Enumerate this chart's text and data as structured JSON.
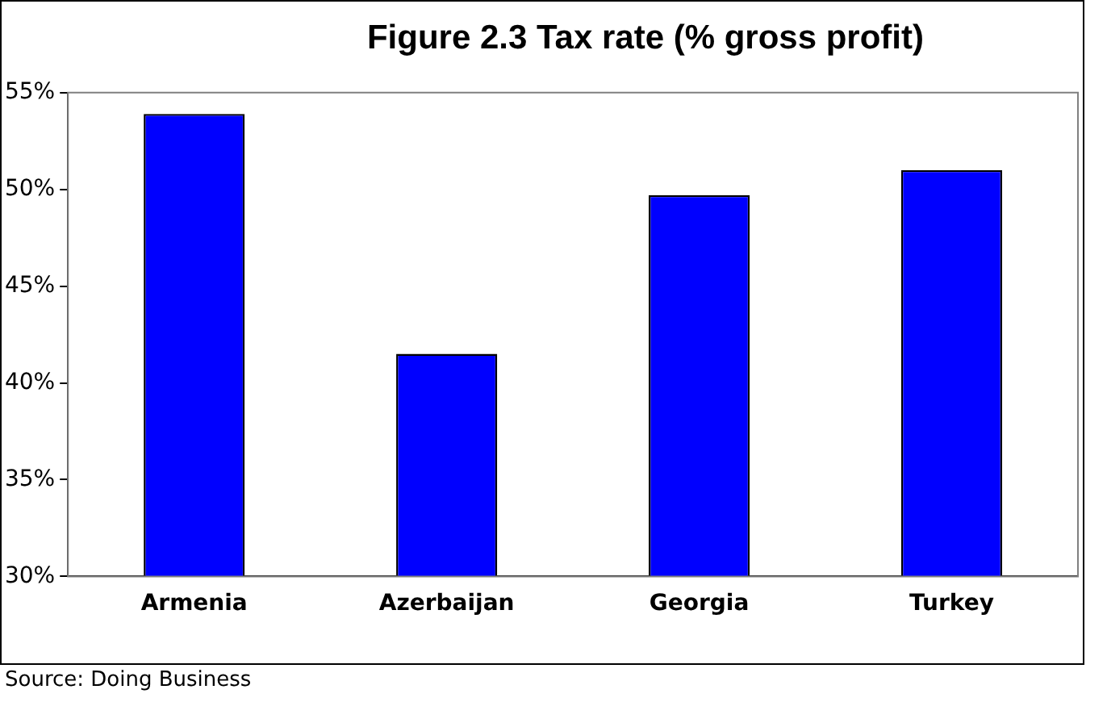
{
  "chart_data": {
    "type": "bar",
    "title": "Figure 2.3 Tax rate (% gross profit)",
    "categories": [
      "Armenia",
      "Azerbaijan",
      "Georgia",
      "Turkey"
    ],
    "values": [
      53.9,
      41.5,
      49.7,
      51.0
    ],
    "color": "#0000ff",
    "ylim": [
      30,
      55
    ],
    "yticks": [
      {
        "value": 30,
        "label": "30%"
      },
      {
        "value": 35,
        "label": "35%"
      },
      {
        "value": 40,
        "label": "40%"
      },
      {
        "value": 45,
        "label": "45%"
      },
      {
        "value": 50,
        "label": "50%"
      },
      {
        "value": 55,
        "label": "55%"
      }
    ],
    "grid": false,
    "legend": false,
    "annotations": [
      "Source: Doing Business"
    ]
  }
}
